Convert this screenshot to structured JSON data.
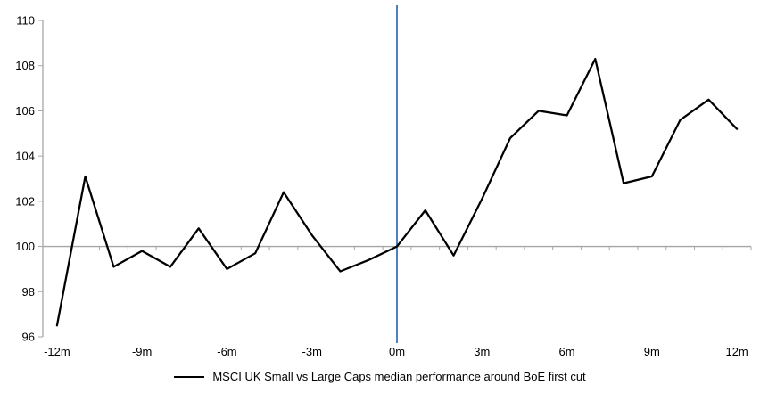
{
  "chart_data": {
    "type": "line",
    "title": "",
    "xlabel": "",
    "ylabel": "",
    "x": [
      -12,
      -11,
      -10,
      -9,
      -8,
      -7,
      -6,
      -5,
      -4,
      -3,
      -2,
      -1,
      0,
      1,
      2,
      3,
      4,
      5,
      6,
      7,
      8,
      9,
      10,
      11,
      12
    ],
    "series": [
      {
        "name": "MSCI UK Small vs Large Caps median performance around BoE first cut",
        "values": [
          96.5,
          103.1,
          99.1,
          99.8,
          99.1,
          100.8,
          99.0,
          99.7,
          102.4,
          100.5,
          98.9,
          99.4,
          100.0,
          101.6,
          99.6,
          102.1,
          104.8,
          106.0,
          105.8,
          108.3,
          102.8,
          103.1,
          105.6,
          106.5,
          105.2
        ]
      }
    ],
    "ylim": [
      96,
      110
    ],
    "y_ticks": [
      96,
      98,
      100,
      102,
      104,
      106,
      108,
      110
    ],
    "x_tick_values": [
      -12,
      -9,
      -6,
      -3,
      0,
      3,
      6,
      9,
      12
    ],
    "x_tick_labels": [
      "-12m",
      "-9m",
      "-6m",
      "-3m",
      "0m",
      "3m",
      "6m",
      "9m",
      "12m"
    ],
    "baseline_value": 100,
    "event_line_x": 0,
    "grid": "baseline-only",
    "legend_position": "bottom-center",
    "colors": {
      "series": "#000000",
      "event_line": "#4f81bd",
      "axis": "#a6a6a6",
      "baseline": "#a6a6a6",
      "text": "#000000"
    }
  },
  "legend": {
    "label": "MSCI UK Small vs Large Caps median performance around BoE first cut"
  }
}
